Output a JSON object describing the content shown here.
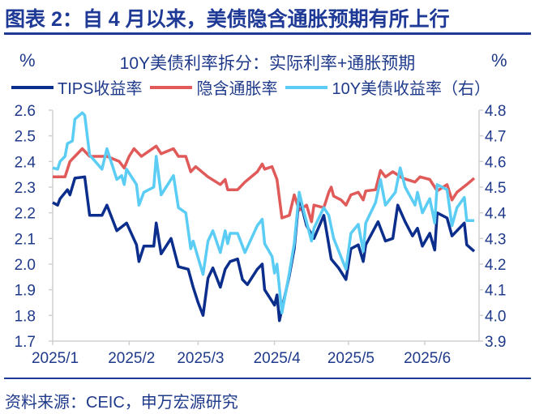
{
  "header": {
    "title": "图表 2：自 4 月以来，美债隐含通胀预期有所上行",
    "left_unit": "%",
    "right_unit": "%"
  },
  "footer": {
    "source": "资料来源：CEIC，申万宏源研究"
  },
  "chart_data": {
    "type": "line",
    "title": "10Y美债利率拆分：实际利率+通胀预期",
    "xlabel": "",
    "ylabel": "%",
    "y2label": "%",
    "x_ticks": [
      "2025/1",
      "2025/2",
      "2025/3",
      "2025/4",
      "2025/5",
      "2025/6"
    ],
    "x_tick_dates": [
      "2025-01-01",
      "2025-02-01",
      "2025-03-01",
      "2025-04-01",
      "2025-05-01",
      "2025-06-01"
    ],
    "xlim": [
      "2025-01-01",
      "2025-06-22"
    ],
    "ylim": [
      1.7,
      2.6
    ],
    "y_ticks": [
      "2.6",
      "2.5",
      "2.4",
      "2.3",
      "2.2",
      "2.1",
      "2.0",
      "1.9",
      "1.8",
      "1.7"
    ],
    "y2lim": [
      3.9,
      4.8
    ],
    "y2_ticks": [
      "4.8",
      "4.7",
      "4.6",
      "4.5",
      "4.4",
      "4.3",
      "4.2",
      "4.1",
      "4.0",
      "3.9"
    ],
    "grid": false,
    "legend_position": "top",
    "series": [
      {
        "name": "TIPS收益率",
        "axis": "left",
        "color": "#0b2d8c",
        "points": [
          [
            "2025-01-01",
            2.24
          ],
          [
            "2025-01-03",
            2.23
          ],
          [
            "2025-01-04",
            2.255
          ],
          [
            "2025-01-07",
            2.29
          ],
          [
            "2025-01-08",
            2.27
          ],
          [
            "2025-01-10",
            2.335
          ],
          [
            "2025-01-14",
            2.34
          ],
          [
            "2025-01-16",
            2.19
          ],
          [
            "2025-01-21",
            2.19
          ],
          [
            "2025-01-23",
            2.23
          ],
          [
            "2025-01-27",
            2.13
          ],
          [
            "2025-01-31",
            2.16
          ],
          [
            "2025-02-04",
            2.075
          ],
          [
            "2025-02-05",
            2.01
          ],
          [
            "2025-02-07",
            2.07
          ],
          [
            "2025-02-11",
            2.07
          ],
          [
            "2025-02-12",
            2.16
          ],
          [
            "2025-02-14",
            2.04
          ],
          [
            "2025-02-18",
            2.1
          ],
          [
            "2025-02-21",
            1.99
          ],
          [
            "2025-02-25",
            1.98
          ],
          [
            "2025-02-27",
            1.91
          ],
          [
            "2025-03-01",
            1.85
          ],
          [
            "2025-03-03",
            1.8
          ],
          [
            "2025-03-05",
            1.945
          ],
          [
            "2025-03-07",
            1.985
          ],
          [
            "2025-03-10",
            1.91
          ],
          [
            "2025-03-12",
            1.98
          ],
          [
            "2025-03-14",
            2.01
          ],
          [
            "2025-03-17",
            2.02
          ],
          [
            "2025-03-19",
            1.94
          ],
          [
            "2025-03-21",
            1.92
          ],
          [
            "2025-03-25",
            1.98
          ],
          [
            "2025-03-27",
            2.0
          ],
          [
            "2025-03-28",
            1.9
          ],
          [
            "2025-04-01",
            1.84
          ],
          [
            "2025-04-02",
            1.88
          ],
          [
            "2025-04-03",
            1.78
          ],
          [
            "2025-04-07",
            1.955
          ],
          [
            "2025-04-09",
            2.06
          ],
          [
            "2025-04-11",
            2.265
          ],
          [
            "2025-04-14",
            2.15
          ],
          [
            "2025-04-17",
            2.1
          ],
          [
            "2025-04-21",
            2.19
          ],
          [
            "2025-04-24",
            2.02
          ],
          [
            "2025-04-27",
            1.985
          ],
          [
            "2025-04-30",
            1.94
          ],
          [
            "2025-05-02",
            2.06
          ],
          [
            "2025-05-05",
            2.075
          ],
          [
            "2025-05-07",
            2.01
          ],
          [
            "2025-05-08",
            2.075
          ],
          [
            "2025-05-13",
            2.165
          ],
          [
            "2025-05-16",
            2.09
          ],
          [
            "2025-05-19",
            2.1
          ],
          [
            "2025-05-21",
            2.23
          ],
          [
            "2025-05-24",
            2.165
          ],
          [
            "2025-05-27",
            2.11
          ],
          [
            "2025-05-29",
            2.14
          ],
          [
            "2025-05-31",
            2.07
          ],
          [
            "2025-06-03",
            2.12
          ],
          [
            "2025-06-05",
            2.055
          ],
          [
            "2025-06-06",
            2.2
          ],
          [
            "2025-06-10",
            2.18
          ],
          [
            "2025-06-12",
            2.11
          ],
          [
            "2025-06-17",
            2.16
          ],
          [
            "2025-06-18",
            2.075
          ],
          [
            "2025-06-21",
            2.05
          ]
        ]
      },
      {
        "name": "隐含通胀率",
        "axis": "left",
        "color": "#e05a5a",
        "points": [
          [
            "2025-01-01",
            2.34
          ],
          [
            "2025-01-06",
            2.34
          ],
          [
            "2025-01-08",
            2.4
          ],
          [
            "2025-01-10",
            2.42
          ],
          [
            "2025-01-13",
            2.45
          ],
          [
            "2025-01-16",
            2.42
          ],
          [
            "2025-01-23",
            2.42
          ],
          [
            "2025-01-28",
            2.4
          ],
          [
            "2025-01-30",
            2.375
          ],
          [
            "2025-02-01",
            2.42
          ],
          [
            "2025-02-03",
            2.45
          ],
          [
            "2025-02-06",
            2.42
          ],
          [
            "2025-02-12",
            2.46
          ],
          [
            "2025-02-14",
            2.43
          ],
          [
            "2025-02-19",
            2.45
          ],
          [
            "2025-02-21",
            2.42
          ],
          [
            "2025-02-24",
            2.42
          ],
          [
            "2025-02-26",
            2.36
          ],
          [
            "2025-02-28",
            2.38
          ],
          [
            "2025-03-05",
            2.34
          ],
          [
            "2025-03-10",
            2.31
          ],
          [
            "2025-03-12",
            2.33
          ],
          [
            "2025-03-13",
            2.29
          ],
          [
            "2025-03-17",
            2.29
          ],
          [
            "2025-03-20",
            2.32
          ],
          [
            "2025-03-25",
            2.36
          ],
          [
            "2025-03-27",
            2.39
          ],
          [
            "2025-03-28",
            2.37
          ],
          [
            "2025-03-31",
            2.38
          ],
          [
            "2025-04-02",
            2.33
          ],
          [
            "2025-04-04",
            2.18
          ],
          [
            "2025-04-07",
            2.19
          ],
          [
            "2025-04-09",
            2.27
          ],
          [
            "2025-04-11",
            2.21
          ],
          [
            "2025-04-14",
            2.23
          ],
          [
            "2025-04-16",
            2.165
          ],
          [
            "2025-04-17",
            2.23
          ],
          [
            "2025-04-21",
            2.22
          ],
          [
            "2025-04-23",
            2.28
          ],
          [
            "2025-04-24",
            2.3
          ],
          [
            "2025-04-25",
            2.265
          ],
          [
            "2025-04-28",
            2.25
          ],
          [
            "2025-04-30",
            2.23
          ],
          [
            "2025-05-02",
            2.27
          ],
          [
            "2025-05-05",
            2.28
          ],
          [
            "2025-05-07",
            2.25
          ],
          [
            "2025-05-08",
            2.285
          ],
          [
            "2025-05-12",
            2.29
          ],
          [
            "2025-05-14",
            2.365
          ],
          [
            "2025-05-16",
            2.34
          ],
          [
            "2025-05-19",
            2.36
          ],
          [
            "2025-05-23",
            2.335
          ],
          [
            "2025-05-28",
            2.32
          ],
          [
            "2025-05-30",
            2.34
          ],
          [
            "2025-06-03",
            2.33
          ],
          [
            "2025-06-06",
            2.285
          ],
          [
            "2025-06-10",
            2.31
          ],
          [
            "2025-06-12",
            2.25
          ],
          [
            "2025-06-14",
            2.28
          ],
          [
            "2025-06-18",
            2.31
          ],
          [
            "2025-06-21",
            2.335
          ]
        ]
      },
      {
        "name": "10Y美债收益率（右）",
        "axis": "right",
        "color": "#5bcdf5",
        "points": [
          [
            "2025-01-01",
            4.575
          ],
          [
            "2025-01-03",
            4.57
          ],
          [
            "2025-01-04",
            4.6
          ],
          [
            "2025-01-06",
            4.62
          ],
          [
            "2025-01-07",
            4.67
          ],
          [
            "2025-01-09",
            4.68
          ],
          [
            "2025-01-10",
            4.765
          ],
          [
            "2025-01-13",
            4.79
          ],
          [
            "2025-01-14",
            4.78
          ],
          [
            "2025-01-16",
            4.625
          ],
          [
            "2025-01-21",
            4.57
          ],
          [
            "2025-01-23",
            4.65
          ],
          [
            "2025-01-27",
            4.53
          ],
          [
            "2025-01-29",
            4.545
          ],
          [
            "2025-01-30",
            4.51
          ],
          [
            "2025-01-31",
            4.57
          ],
          [
            "2025-02-04",
            4.51
          ],
          [
            "2025-02-05",
            4.43
          ],
          [
            "2025-02-07",
            4.48
          ],
          [
            "2025-02-11",
            4.5
          ],
          [
            "2025-02-12",
            4.62
          ],
          [
            "2025-02-14",
            4.47
          ],
          [
            "2025-02-19",
            4.545
          ],
          [
            "2025-02-21",
            4.42
          ],
          [
            "2025-02-24",
            4.4
          ],
          [
            "2025-02-26",
            4.26
          ],
          [
            "2025-02-27",
            4.29
          ],
          [
            "2025-03-03",
            4.16
          ],
          [
            "2025-03-05",
            4.29
          ],
          [
            "2025-03-07",
            4.33
          ],
          [
            "2025-03-10",
            4.245
          ],
          [
            "2025-03-12",
            4.33
          ],
          [
            "2025-03-13",
            4.28
          ],
          [
            "2025-03-14",
            4.32
          ],
          [
            "2025-03-17",
            4.32
          ],
          [
            "2025-03-20",
            4.245
          ],
          [
            "2025-03-25",
            4.35
          ],
          [
            "2025-03-27",
            4.375
          ],
          [
            "2025-03-28",
            4.28
          ],
          [
            "2025-03-31",
            4.23
          ],
          [
            "2025-04-01",
            4.165
          ],
          [
            "2025-04-02",
            4.2
          ],
          [
            "2025-04-04",
            4.01
          ],
          [
            "2025-04-07",
            4.165
          ],
          [
            "2025-04-09",
            4.28
          ],
          [
            "2025-04-11",
            4.48
          ],
          [
            "2025-04-13",
            4.4
          ],
          [
            "2025-04-16",
            4.29
          ],
          [
            "2025-04-17",
            4.34
          ],
          [
            "2025-04-21",
            4.42
          ],
          [
            "2025-04-23",
            4.39
          ],
          [
            "2025-04-25",
            4.3
          ],
          [
            "2025-04-30",
            4.18
          ],
          [
            "2025-05-02",
            4.32
          ],
          [
            "2025-05-05",
            4.355
          ],
          [
            "2025-05-07",
            4.25
          ],
          [
            "2025-05-08",
            4.36
          ],
          [
            "2025-05-12",
            4.44
          ],
          [
            "2025-05-14",
            4.53
          ],
          [
            "2025-05-16",
            4.43
          ],
          [
            "2025-05-20",
            4.48
          ],
          [
            "2025-05-22",
            4.575
          ],
          [
            "2025-05-24",
            4.5
          ],
          [
            "2025-05-28",
            4.43
          ],
          [
            "2025-05-29",
            4.48
          ],
          [
            "2025-05-31",
            4.4
          ],
          [
            "2025-06-03",
            4.455
          ],
          [
            "2025-06-05",
            4.36
          ],
          [
            "2025-06-06",
            4.51
          ],
          [
            "2025-06-10",
            4.49
          ],
          [
            "2025-06-12",
            4.35
          ],
          [
            "2025-06-14",
            4.42
          ],
          [
            "2025-06-17",
            4.46
          ],
          [
            "2025-06-18",
            4.37
          ],
          [
            "2025-06-21",
            4.37
          ]
        ]
      }
    ]
  }
}
